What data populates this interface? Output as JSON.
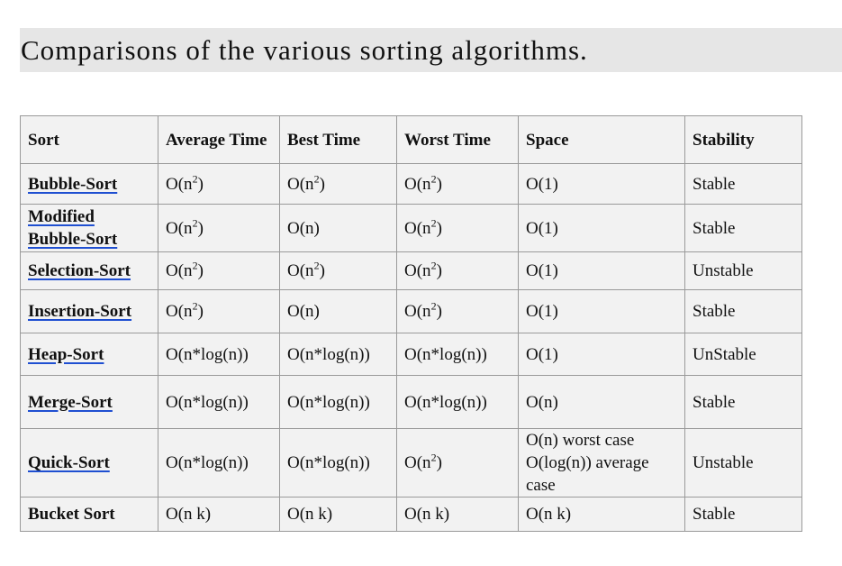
{
  "title": "Comparisons of the various sorting algorithms.",
  "table": {
    "headers": [
      "Sort",
      "Average Time",
      "Best Time",
      "Worst Time",
      "Space",
      "Stability"
    ],
    "rows": [
      {
        "name": "Bubble-Sort",
        "link": true,
        "avg": "O(n^2)",
        "best": "O(n^2)",
        "worst": "O(n^2)",
        "space": "O(1)",
        "stability": "Stable"
      },
      {
        "name": "Modified Bubble-Sort",
        "link": true,
        "avg": "O(n^2)",
        "best": "O(n)",
        "worst": "O(n^2)",
        "space": "O(1)",
        "stability": "Stable"
      },
      {
        "name": "Selection-Sort",
        "link": true,
        "avg": "O(n^2)",
        "best": "O(n^2)",
        "worst": "O(n^2)",
        "space": "O(1)",
        "stability": "Unstable"
      },
      {
        "name": "Insertion-Sort",
        "link": true,
        "avg": "O(n^2)",
        "best": "O(n)",
        "worst": "O(n^2)",
        "space": "O(1)",
        "stability": "Stable"
      },
      {
        "name": "Heap-Sort",
        "link": true,
        "avg": "O(n*log(n))",
        "best": "O(n*log(n))",
        "worst": "O(n*log(n))",
        "space": "O(1)",
        "stability": "UnStable"
      },
      {
        "name": "Merge-Sort",
        "link": true,
        "avg": "O(n*log(n))",
        "best": "O(n*log(n))",
        "worst": "O(n*log(n))",
        "space": "O(n)",
        "stability": "Stable"
      },
      {
        "name": "Quick-Sort",
        "link": true,
        "avg": "O(n*log(n))",
        "best": "O(n*log(n))",
        "worst": "O(n^2)",
        "space": "O(n) worst case O(log(n)) average case",
        "stability": "Unstable"
      },
      {
        "name": "Bucket Sort",
        "link": false,
        "avg": "O(n k)",
        "best": "O(n k)",
        "worst": "O(n k)",
        "space": "O(n k)",
        "stability": "Stable"
      }
    ]
  }
}
